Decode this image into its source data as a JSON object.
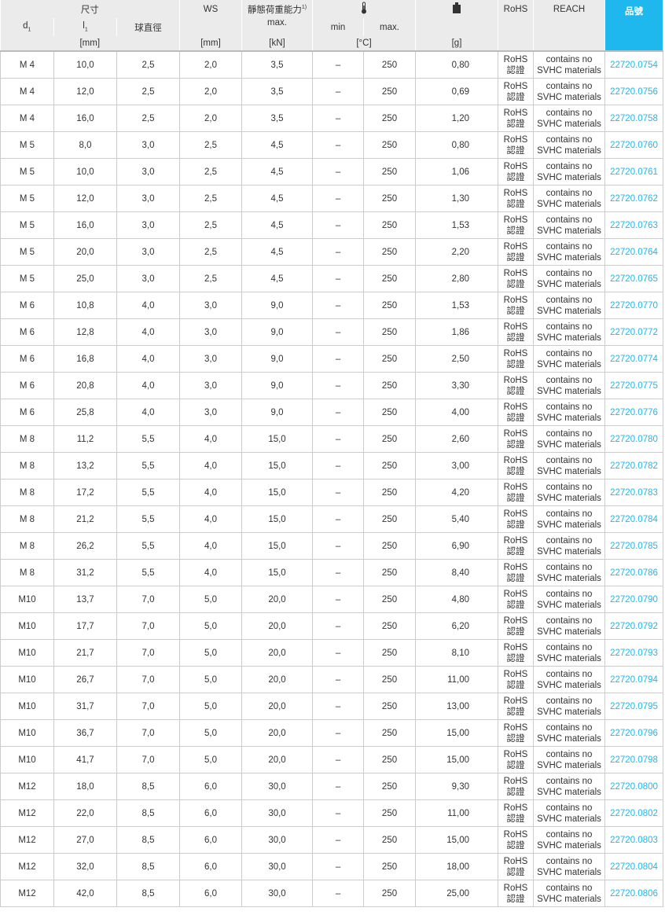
{
  "header": {
    "dimensions": "尺寸",
    "d1": "d",
    "d1_sub": "1",
    "l1": "l",
    "l1_sub": "1",
    "ball_diameter": "球直徑",
    "ws": "WS",
    "static_load": "靜態荷重能力",
    "static_load_sup": "1)",
    "max": "max.",
    "min": "min",
    "temp_max": "max.",
    "rohs": "RoHS",
    "reach": "REACH",
    "part_no": "品號",
    "unit_mm": "[mm]",
    "unit_ws": "[mm]",
    "unit_kn": "[kN]",
    "unit_c": "[°C]",
    "unit_g": "[g]",
    "temp_icon": "thermometer-icon",
    "weight_icon": "weight-icon"
  },
  "colors": {
    "accent": "#1eb8ee",
    "header_bg": "#ebebeb"
  },
  "common": {
    "min": "–",
    "max": "250",
    "rohs_line1": "RoHS",
    "rohs_line2": "認證",
    "reach_line1": "contains no",
    "reach_line2": "SVHC materials"
  },
  "rows": [
    [
      "M 4",
      "10,0",
      "2,5",
      "2,0",
      "3,5",
      "0,80",
      "22720.0754"
    ],
    [
      "M 4",
      "12,0",
      "2,5",
      "2,0",
      "3,5",
      "0,69",
      "22720.0756"
    ],
    [
      "M 4",
      "16,0",
      "2,5",
      "2,0",
      "3,5",
      "1,20",
      "22720.0758"
    ],
    [
      "M 5",
      "8,0",
      "3,0",
      "2,5",
      "4,5",
      "0,80",
      "22720.0760"
    ],
    [
      "M 5",
      "10,0",
      "3,0",
      "2,5",
      "4,5",
      "1,06",
      "22720.0761"
    ],
    [
      "M 5",
      "12,0",
      "3,0",
      "2,5",
      "4,5",
      "1,30",
      "22720.0762"
    ],
    [
      "M 5",
      "16,0",
      "3,0",
      "2,5",
      "4,5",
      "1,53",
      "22720.0763"
    ],
    [
      "M 5",
      "20,0",
      "3,0",
      "2,5",
      "4,5",
      "2,20",
      "22720.0764"
    ],
    [
      "M 5",
      "25,0",
      "3,0",
      "2,5",
      "4,5",
      "2,80",
      "22720.0765"
    ],
    [
      "M 6",
      "10,8",
      "4,0",
      "3,0",
      "9,0",
      "1,53",
      "22720.0770"
    ],
    [
      "M 6",
      "12,8",
      "4,0",
      "3,0",
      "9,0",
      "1,86",
      "22720.0772"
    ],
    [
      "M 6",
      "16,8",
      "4,0",
      "3,0",
      "9,0",
      "2,50",
      "22720.0774"
    ],
    [
      "M 6",
      "20,8",
      "4,0",
      "3,0",
      "9,0",
      "3,30",
      "22720.0775"
    ],
    [
      "M 6",
      "25,8",
      "4,0",
      "3,0",
      "9,0",
      "4,00",
      "22720.0776"
    ],
    [
      "M 8",
      "11,2",
      "5,5",
      "4,0",
      "15,0",
      "2,60",
      "22720.0780"
    ],
    [
      "M 8",
      "13,2",
      "5,5",
      "4,0",
      "15,0",
      "3,00",
      "22720.0782"
    ],
    [
      "M 8",
      "17,2",
      "5,5",
      "4,0",
      "15,0",
      "4,20",
      "22720.0783"
    ],
    [
      "M 8",
      "21,2",
      "5,5",
      "4,0",
      "15,0",
      "5,40",
      "22720.0784"
    ],
    [
      "M 8",
      "26,2",
      "5,5",
      "4,0",
      "15,0",
      "6,90",
      "22720.0785"
    ],
    [
      "M 8",
      "31,2",
      "5,5",
      "4,0",
      "15,0",
      "8,40",
      "22720.0786"
    ],
    [
      "M10",
      "13,7",
      "7,0",
      "5,0",
      "20,0",
      "4,80",
      "22720.0790"
    ],
    [
      "M10",
      "17,7",
      "7,0",
      "5,0",
      "20,0",
      "6,20",
      "22720.0792"
    ],
    [
      "M10",
      "21,7",
      "7,0",
      "5,0",
      "20,0",
      "8,10",
      "22720.0793"
    ],
    [
      "M10",
      "26,7",
      "7,0",
      "5,0",
      "20,0",
      "11,00",
      "22720.0794"
    ],
    [
      "M10",
      "31,7",
      "7,0",
      "5,0",
      "20,0",
      "13,00",
      "22720.0795"
    ],
    [
      "M10",
      "36,7",
      "7,0",
      "5,0",
      "20,0",
      "15,00",
      "22720.0796"
    ],
    [
      "M10",
      "41,7",
      "7,0",
      "5,0",
      "20,0",
      "15,00",
      "22720.0798"
    ],
    [
      "M12",
      "18,0",
      "8,5",
      "6,0",
      "30,0",
      "9,30",
      "22720.0800"
    ],
    [
      "M12",
      "22,0",
      "8,5",
      "6,0",
      "30,0",
      "11,00",
      "22720.0802"
    ],
    [
      "M12",
      "27,0",
      "8,5",
      "6,0",
      "30,0",
      "15,00",
      "22720.0803"
    ],
    [
      "M12",
      "32,0",
      "8,5",
      "6,0",
      "30,0",
      "18,00",
      "22720.0804"
    ],
    [
      "M12",
      "42,0",
      "8,5",
      "6,0",
      "30,0",
      "25,00",
      "22720.0806"
    ]
  ]
}
